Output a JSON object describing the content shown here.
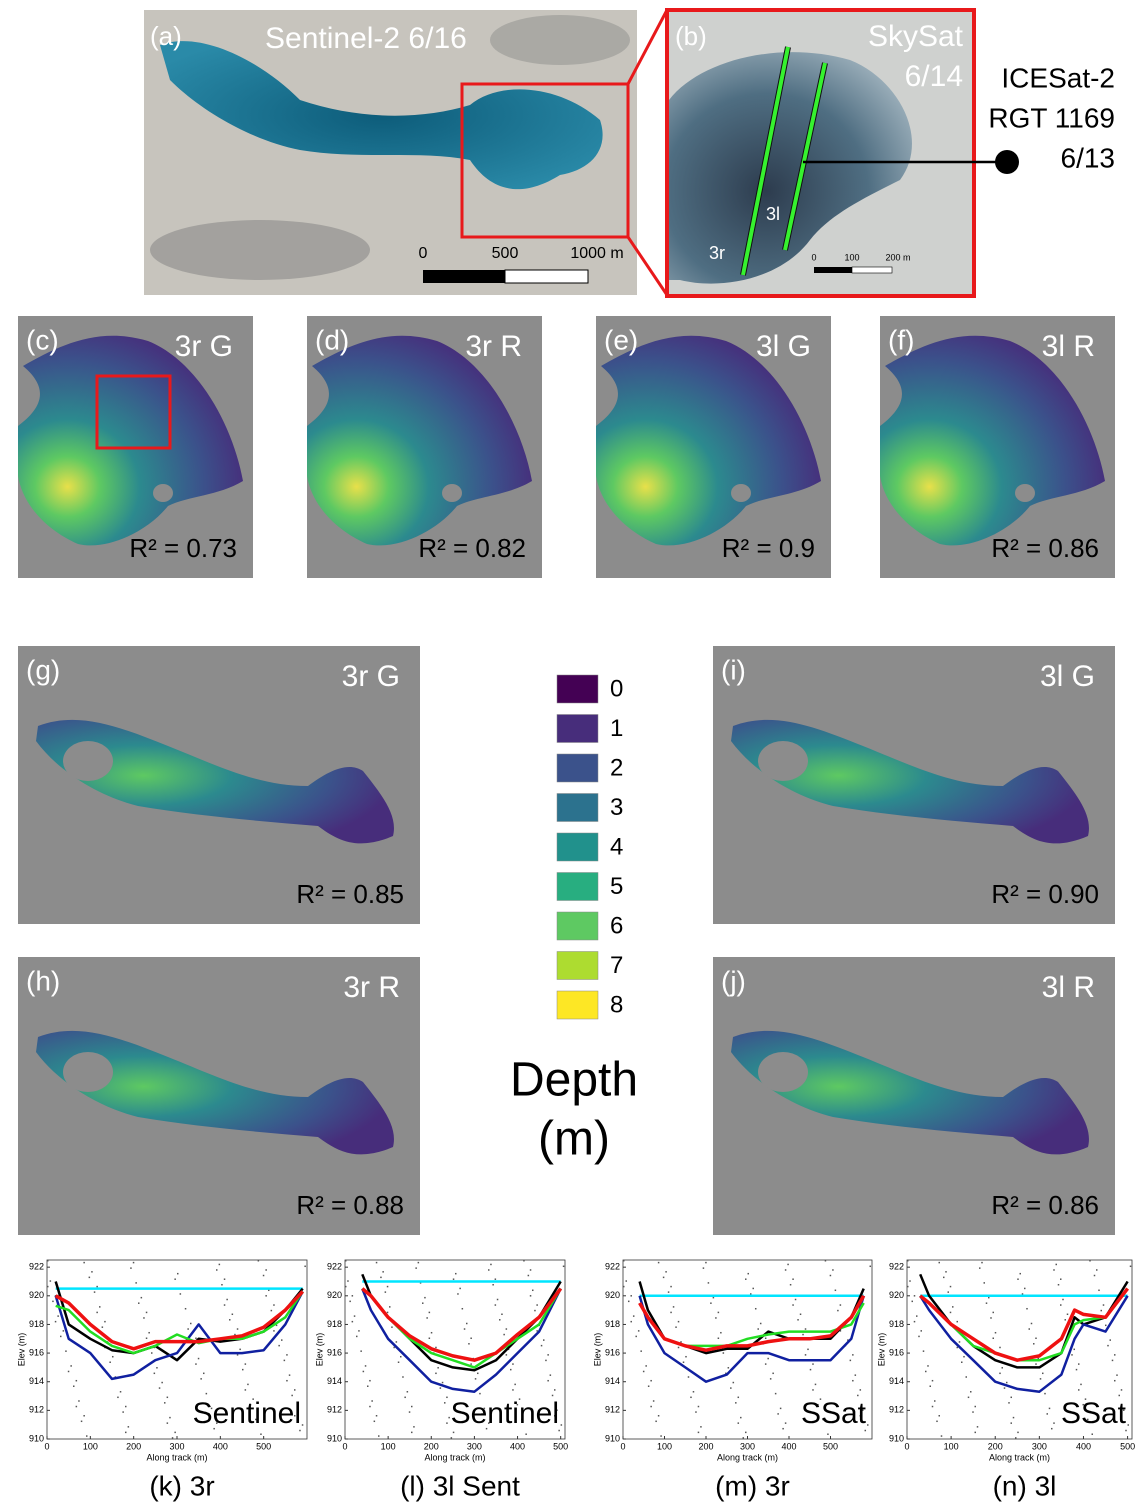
{
  "panel_a": {
    "label": "(a)",
    "title": "Sentinel-2   6/16",
    "scale_labels": [
      "0",
      "500",
      "1000 m"
    ]
  },
  "panel_b": {
    "label": "(b)",
    "title_lines": [
      "SkySat",
      "6/14"
    ],
    "track_labels": [
      "3r",
      "3l"
    ],
    "scale_labels": [
      "0",
      "100",
      "200 m"
    ]
  },
  "icesat_lines": [
    "ICESat-2",
    "RGT 1169",
    "6/13"
  ],
  "maps": [
    {
      "label": "(c)",
      "name": "3r G",
      "r2": "R² = 0.73"
    },
    {
      "label": "(d)",
      "name": "3r R",
      "r2": "R² = 0.82"
    },
    {
      "label": "(e)",
      "name": "3l G",
      "r2": "R² = 0.9"
    },
    {
      "label": "(f)",
      "name": "3l R",
      "r2": "R² = 0.86"
    },
    {
      "label": "(g)",
      "name": "3r G",
      "r2": "R² = 0.85"
    },
    {
      "label": "(i)",
      "name": "3l G",
      "r2": "R² = 0.90"
    },
    {
      "label": "(h)",
      "name": "3r R",
      "r2": "R² = 0.88"
    },
    {
      "label": "(j)",
      "name": "3l R",
      "r2": "R² = 0.86"
    }
  ],
  "depth_legend": {
    "title_lines": [
      "Depth",
      "(m)"
    ],
    "values": [
      0,
      1,
      2,
      3,
      4,
      5,
      6,
      7,
      8
    ],
    "colors": [
      "#440154",
      "#472d7b",
      "#3b528b",
      "#2c728e",
      "#21918c",
      "#28ae80",
      "#5ec962",
      "#addc30",
      "#fde725"
    ]
  },
  "chart_data": [
    {
      "type": "line",
      "title": "Sentinel",
      "caption": "(k) 3r",
      "xlabel": "Along track (m)",
      "ylabel": "Elev (m)",
      "xlim": [
        0,
        600
      ],
      "ylim": [
        910,
        922.5
      ],
      "xticks": [
        0,
        100,
        200,
        300,
        400,
        500
      ],
      "yticks": [
        910,
        912,
        914,
        916,
        918,
        920,
        922
      ],
      "x": [
        20,
        50,
        100,
        150,
        200,
        250,
        300,
        350,
        400,
        450,
        500,
        550,
        590
      ],
      "series": [
        {
          "color": "#00e5ff",
          "values": [
            920.5,
            920.5,
            920.5,
            920.5,
            920.5,
            920.5,
            920.5,
            920.5,
            920.5,
            920.5,
            920.5,
            920.5,
            920.5
          ]
        },
        {
          "color": "#000000",
          "values": [
            921,
            918,
            917,
            916.2,
            916,
            916.5,
            915.5,
            917,
            916.8,
            917,
            917.5,
            919,
            920.5
          ]
        },
        {
          "color": "#1020a0",
          "values": [
            920,
            917,
            916,
            914.2,
            914.5,
            915.5,
            916,
            918,
            916,
            916,
            916.2,
            918,
            920.3
          ]
        },
        {
          "color": "#22dd22",
          "values": [
            919.3,
            919,
            917.5,
            916.5,
            916,
            916.5,
            917.3,
            916.7,
            917,
            917,
            917.5,
            918.5,
            920.3
          ]
        },
        {
          "color": "#ee1111",
          "values": [
            920,
            919.5,
            918,
            916.8,
            916.3,
            916.8,
            916.8,
            916.8,
            917,
            917.2,
            917.8,
            919,
            920.3
          ]
        }
      ]
    },
    {
      "type": "line",
      "title": "Sentinel",
      "caption": "(l) 3l Sent",
      "xlabel": "Along track (m)",
      "ylabel": "Elev (m)",
      "xlim": [
        0,
        510
      ],
      "ylim": [
        910,
        922.5
      ],
      "xticks": [
        0,
        100,
        200,
        300,
        400,
        500
      ],
      "yticks": [
        910,
        912,
        914,
        916,
        918,
        920,
        922
      ],
      "x": [
        40,
        60,
        100,
        150,
        200,
        250,
        300,
        350,
        400,
        450,
        500
      ],
      "series": [
        {
          "color": "#00e5ff",
          "values": [
            921,
            921,
            921,
            921,
            921,
            921,
            921,
            921,
            921,
            921,
            921
          ]
        },
        {
          "color": "#000000",
          "values": [
            921.5,
            920,
            918.5,
            917,
            915.5,
            915,
            914.8,
            915.5,
            917,
            918.5,
            921
          ]
        },
        {
          "color": "#1020a0",
          "values": [
            920.5,
            919,
            917,
            915.5,
            914,
            913.5,
            913.3,
            914.5,
            916,
            917.5,
            920.5
          ]
        },
        {
          "color": "#22dd22",
          "values": [
            920.5,
            920,
            918.5,
            917,
            916,
            915.5,
            915,
            916,
            917,
            918,
            920.5
          ]
        },
        {
          "color": "#ee1111",
          "values": [
            920.5,
            920,
            918.5,
            917.2,
            916.3,
            915.8,
            915.5,
            916,
            917.3,
            918.5,
            920.5
          ]
        }
      ]
    },
    {
      "type": "line",
      "title": "SSat",
      "caption": "(m) 3r",
      "xlabel": "Along track (m)",
      "ylabel": "Elev (m)",
      "xlim": [
        0,
        600
      ],
      "ylim": [
        910,
        922.5
      ],
      "xticks": [
        0,
        100,
        200,
        300,
        400,
        500
      ],
      "yticks": [
        910,
        912,
        914,
        916,
        918,
        920,
        922
      ],
      "x": [
        40,
        60,
        100,
        150,
        200,
        250,
        300,
        350,
        400,
        450,
        500,
        550,
        580
      ],
      "series": [
        {
          "color": "#00e5ff",
          "values": [
            920,
            920,
            920,
            920,
            920,
            920,
            920,
            920,
            920,
            920,
            920,
            920,
            920
          ]
        },
        {
          "color": "#000000",
          "values": [
            921,
            919,
            917,
            916.5,
            916,
            916.3,
            916.3,
            917.5,
            917,
            917,
            917,
            918.5,
            920.5
          ]
        },
        {
          "color": "#1020a0",
          "values": [
            920,
            918,
            916,
            915,
            914,
            914.5,
            916,
            916,
            915.5,
            915.5,
            915.5,
            917,
            920
          ]
        },
        {
          "color": "#22dd22",
          "values": [
            null,
            918.5,
            917,
            916.5,
            916.5,
            916.5,
            917,
            917.3,
            917.5,
            917.5,
            917.5,
            918,
            919.5
          ]
        },
        {
          "color": "#ee1111",
          "values": [
            919.5,
            918.5,
            917,
            916.5,
            916.2,
            916.5,
            916.5,
            916.8,
            917,
            917,
            917.2,
            918.5,
            920
          ]
        }
      ]
    },
    {
      "type": "line",
      "title": "SSat",
      "caption": "(n) 3l",
      "xlabel": "Along track (m)",
      "ylabel": "Elev (m)",
      "xlim": [
        0,
        510
      ],
      "ylim": [
        910,
        922.5
      ],
      "xticks": [
        0,
        100,
        200,
        300,
        400,
        500
      ],
      "yticks": [
        910,
        912,
        914,
        916,
        918,
        920,
        922
      ],
      "x": [
        30,
        50,
        100,
        150,
        200,
        250,
        300,
        350,
        380,
        400,
        450,
        500
      ],
      "series": [
        {
          "color": "#00e5ff",
          "values": [
            920,
            920,
            920,
            920,
            920,
            920,
            920,
            920,
            920,
            920,
            920,
            920
          ]
        },
        {
          "color": "#000000",
          "values": [
            921.5,
            920,
            918,
            916.5,
            915.5,
            915,
            915,
            916,
            918.5,
            918,
            918.5,
            921
          ]
        },
        {
          "color": "#1020a0",
          "values": [
            920,
            919,
            917,
            915.5,
            914,
            913.5,
            913.3,
            914.5,
            917,
            918,
            917.5,
            920
          ]
        },
        {
          "color": "#22dd22",
          "values": [
            920,
            919.5,
            918,
            916.5,
            916,
            915.5,
            915.5,
            916,
            918,
            918.3,
            918.5,
            920.5
          ]
        },
        {
          "color": "#ee1111",
          "values": [
            920,
            919.5,
            918,
            917,
            916,
            915.5,
            915.8,
            917,
            919,
            918.7,
            918.5,
            920.5
          ]
        }
      ]
    }
  ]
}
